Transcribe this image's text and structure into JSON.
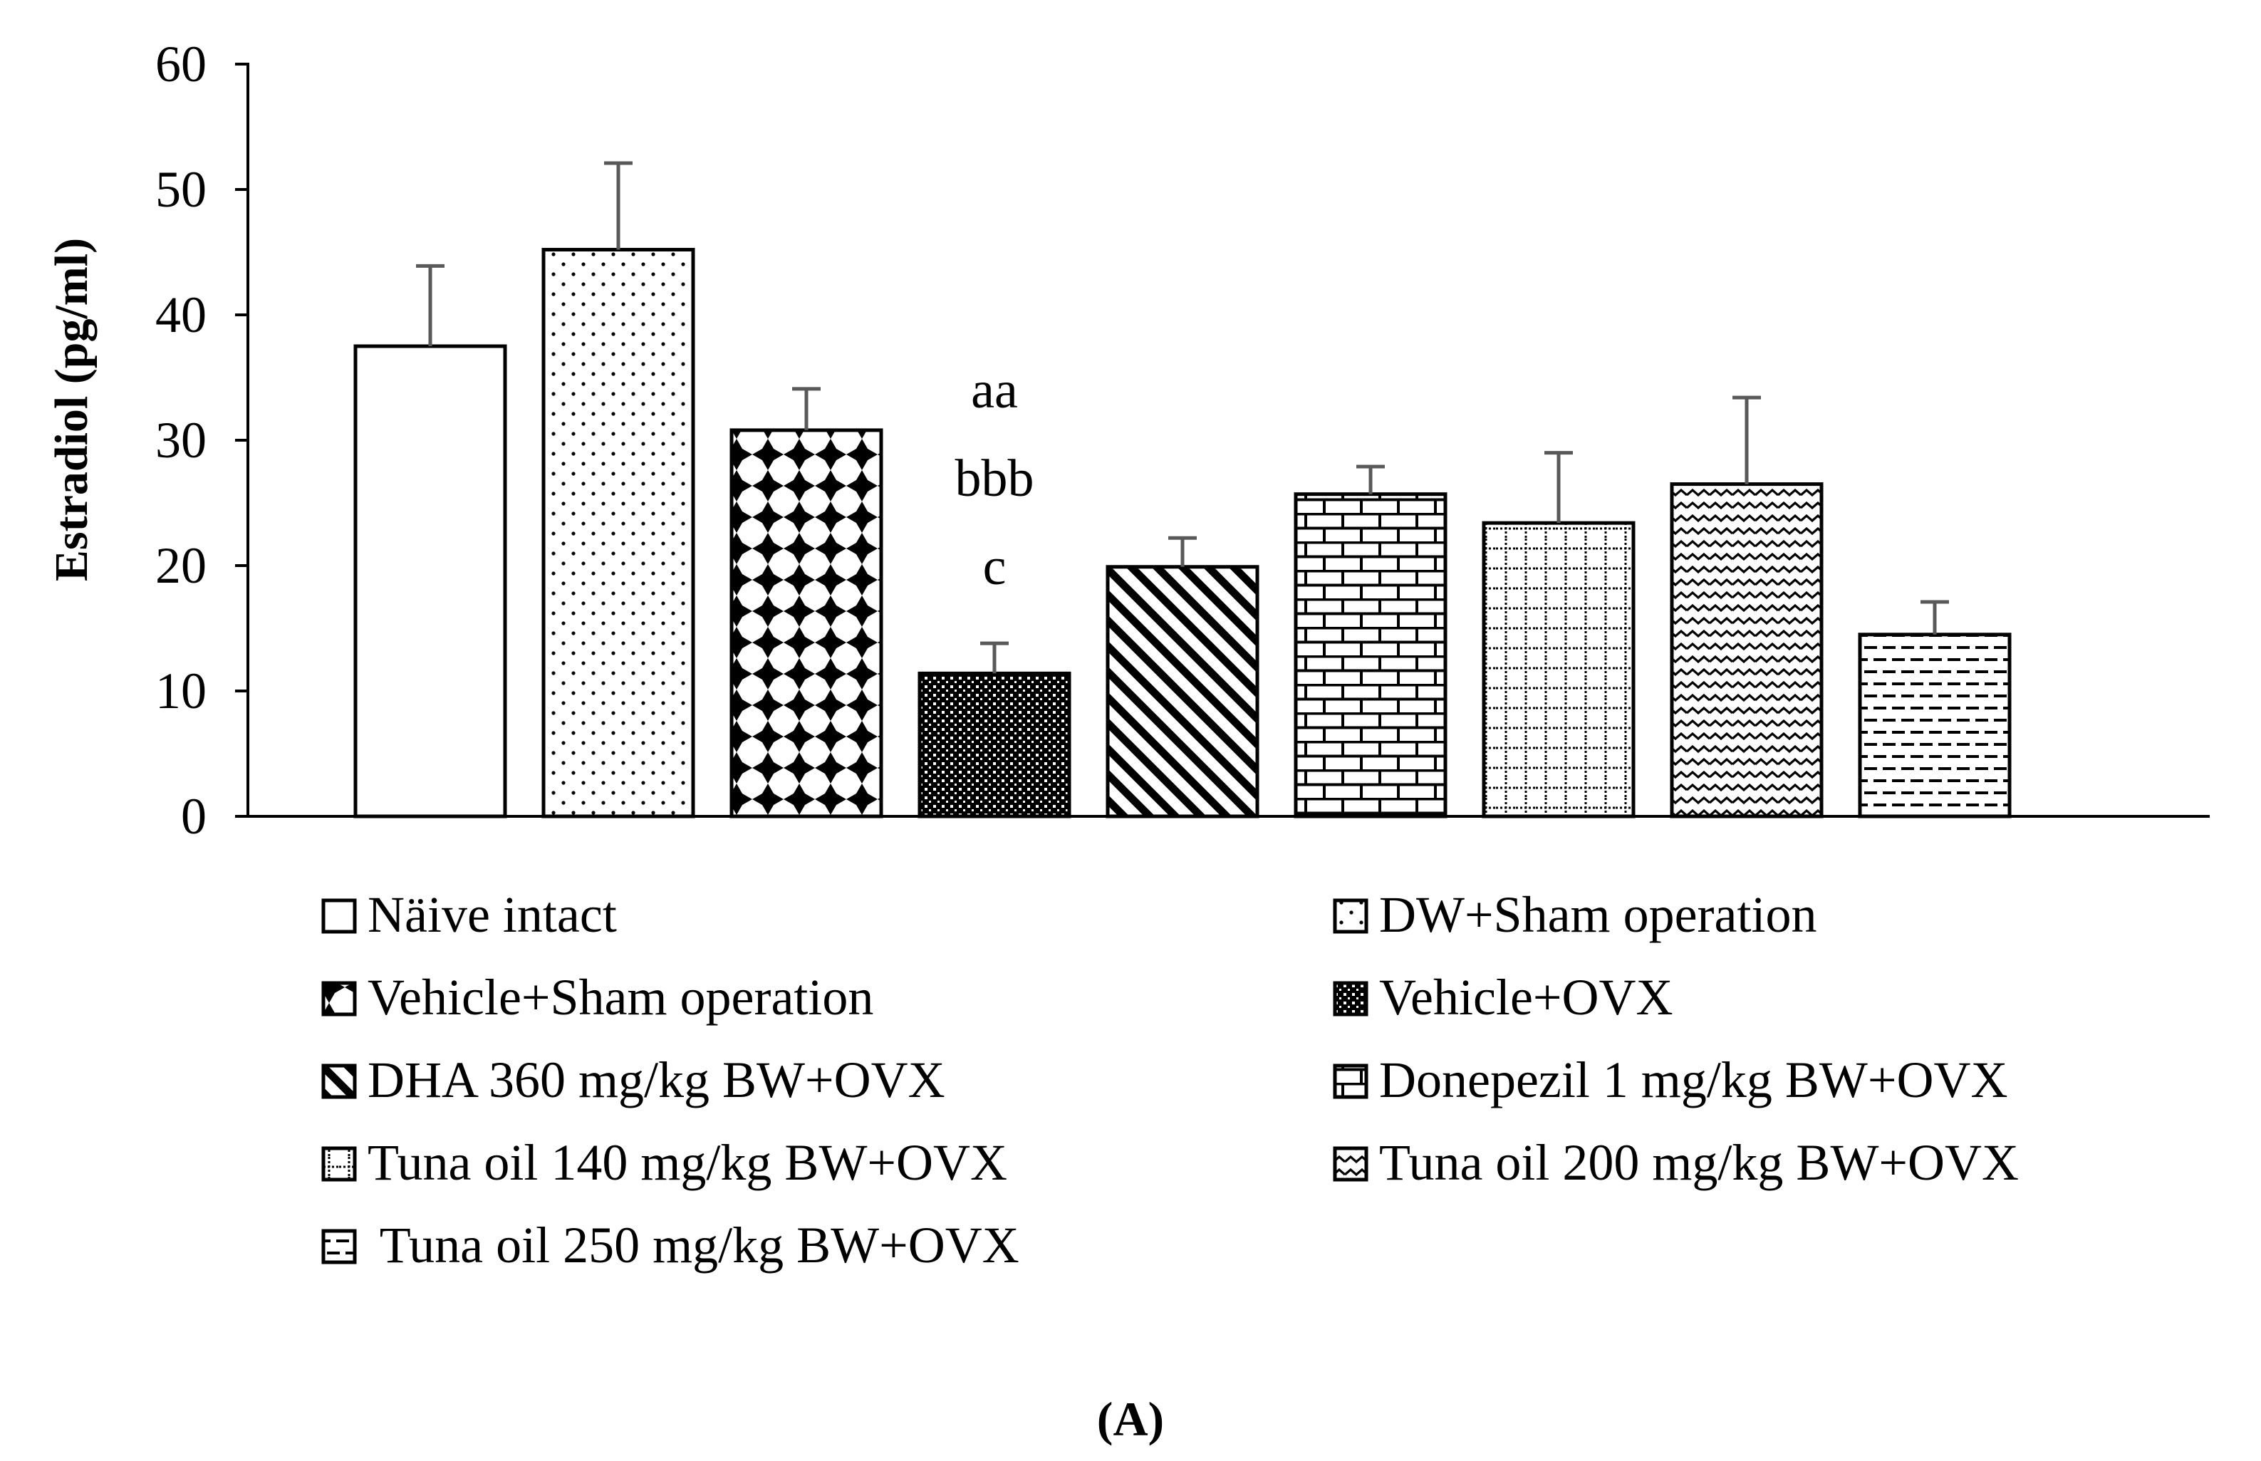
{
  "chart_data": {
    "type": "bar",
    "title": "",
    "xlabel": "",
    "ylabel": "Estradiol (pg/ml)",
    "ylim": [
      0,
      60
    ],
    "yticks": [
      "0",
      "10",
      "20",
      "30",
      "40",
      "50",
      "60"
    ],
    "ytick_values": [
      0,
      10,
      20,
      30,
      40,
      50,
      60
    ],
    "grid": false,
    "legend_position": "bottom",
    "categories": [
      "Näive intact",
      "DW+Sham operation",
      "Vehicle+Sham operation",
      "Vehicle+OVX",
      "DHA 360 mg/kg BW+OVX",
      "Donepezil 1 mg/kg BW+OVX",
      "Tuna oil 140 mg/kg BW+OVX",
      "Tuna oil 200 mg/kg BW+OVX",
      " Tuna oil 250 mg/kg BW+OVX"
    ],
    "values": [
      37.5,
      45.2,
      30.8,
      11.4,
      19.9,
      25.7,
      23.4,
      26.5,
      14.5
    ],
    "errors": [
      6.4,
      6.9,
      3.3,
      2.4,
      2.3,
      2.2,
      5.6,
      6.9,
      2.6
    ],
    "patterns": [
      "none",
      "dots",
      "diamonds",
      "checker",
      "diagonal",
      "brick",
      "grid",
      "wave",
      "dash"
    ],
    "annotations": [
      {
        "category_index": 3,
        "lines": [
          "aa",
          "bbb",
          "c"
        ]
      }
    ],
    "panel_label": "(A)",
    "colors": {
      "bar_stroke": "#000000",
      "bar_fill": "#ffffff",
      "error_bar": "#595959"
    }
  }
}
